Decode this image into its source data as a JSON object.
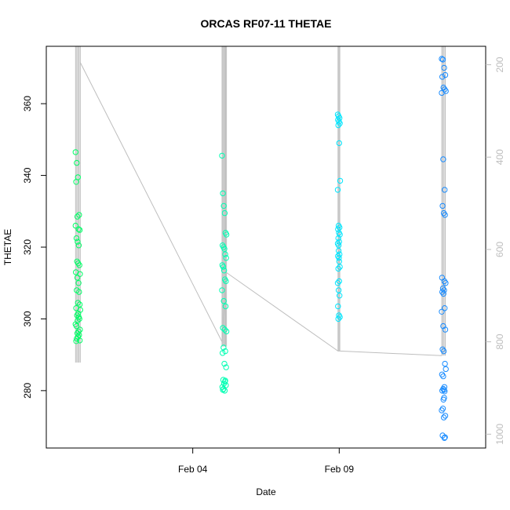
{
  "chart_data": {
    "type": "scatter",
    "title": "ORCAS RF07-11 THETAE",
    "xlabel": "Date",
    "ylabel": "THETAE",
    "x_ticks": [
      "Feb 04",
      "Feb 09"
    ],
    "y_ticks": [
      "280",
      "300",
      "320",
      "340",
      "360"
    ],
    "y2_ticks": [
      "200",
      "400",
      "600",
      "800",
      "1000"
    ],
    "xlim": [
      "2016-01-30",
      "2016-02-14"
    ],
    "ylim": [
      264,
      376
    ],
    "y2lim": [
      1030,
      160
    ],
    "y2_reversed": true,
    "grid": false,
    "colors": {
      "flight1": "#00ff66",
      "flight2": "#00ffb3",
      "flight3": "#00e6ff",
      "flight4": "#1a8cff",
      "altitude_line": "#bebebe"
    },
    "series": [
      {
        "flight": 1,
        "color": "#00ff66",
        "x": [
          "2016-01-31",
          "2016-01-31",
          "2016-01-31",
          "2016-01-31",
          "2016-01-31",
          "2016-01-31",
          "2016-01-31",
          "2016-01-31",
          "2016-01-31",
          "2016-01-31",
          "2016-01-31",
          "2016-01-31",
          "2016-01-31",
          "2016-01-31",
          "2016-01-31",
          "2016-01-31",
          "2016-01-31",
          "2016-01-31",
          "2016-01-31",
          "2016-01-31",
          "2016-01-31",
          "2016-01-31",
          "2016-01-31",
          "2016-01-31",
          "2016-01-31",
          "2016-01-31",
          "2016-01-31",
          "2016-01-31",
          "2016-01-31",
          "2016-01-31",
          "2016-01-31",
          "2016-01-31",
          "2016-01-31",
          "2016-01-31",
          "2016-01-31",
          "2016-01-31",
          "2016-01-31",
          "2016-01-31",
          "2016-01-31",
          "2016-01-31"
        ],
        "x_offset": [
          0.0,
          0.04,
          0.08,
          0.02,
          0.12,
          0.06,
          0.0,
          0.1,
          0.14,
          0.03,
          0.07,
          0.11,
          0.05,
          0.09,
          0.13,
          0.01,
          0.15,
          0.06,
          0.1,
          0.04,
          0.12,
          0.08,
          0.14,
          0.02,
          0.16,
          0.09,
          0.05,
          0.11,
          0.13,
          0.07,
          0.0,
          0.03,
          0.15,
          0.1,
          0.06,
          0.12,
          0.08,
          0.04,
          0.14,
          0.02
        ],
        "y": [
          346.5,
          343.5,
          339.5,
          338.2,
          329,
          328.5,
          326,
          325,
          324.8,
          322.5,
          321.5,
          320.5,
          316,
          315.5,
          315,
          313,
          312.5,
          311.5,
          310,
          308,
          307.5,
          304.5,
          304,
          303,
          302.5,
          301.5,
          301,
          300.5,
          300,
          299.5,
          298.5,
          298,
          297,
          296.5,
          296,
          295.5,
          295,
          294.5,
          294,
          293.8
        ]
      },
      {
        "flight": 2,
        "color": "#00ffb3",
        "x": [
          "2016-02-05",
          "2016-02-05",
          "2016-02-05",
          "2016-02-05",
          "2016-02-05",
          "2016-02-05",
          "2016-02-05",
          "2016-02-05",
          "2016-02-05",
          "2016-02-05",
          "2016-02-05",
          "2016-02-05",
          "2016-02-05",
          "2016-02-05",
          "2016-02-05",
          "2016-02-05",
          "2016-02-05",
          "2016-02-05",
          "2016-02-05",
          "2016-02-05",
          "2016-02-05",
          "2016-02-05",
          "2016-02-05",
          "2016-02-05",
          "2016-02-05",
          "2016-02-05",
          "2016-02-05",
          "2016-02-05",
          "2016-02-05",
          "2016-02-05",
          "2016-02-05",
          "2016-02-05",
          "2016-02-05",
          "2016-02-05",
          "2016-02-05",
          "2016-02-05"
        ],
        "x_offset": [
          0.0,
          0.03,
          0.06,
          0.09,
          0.12,
          0.15,
          0.02,
          0.05,
          0.08,
          0.11,
          0.14,
          0.01,
          0.04,
          0.07,
          0.1,
          0.13,
          0.0,
          0.06,
          0.12,
          0.03,
          0.09,
          0.15,
          0.05,
          0.11,
          0.02,
          0.08,
          0.14,
          0.04,
          0.1,
          0.07,
          0.13,
          0.01,
          0.05,
          0.09,
          0.03,
          0.11
        ],
        "y": [
          345.5,
          335,
          331.5,
          329.5,
          324,
          323.5,
          320.5,
          320,
          319.5,
          318,
          317,
          315,
          314.5,
          313.5,
          311,
          310.5,
          308,
          305,
          303.5,
          297.5,
          297,
          296.5,
          292,
          291,
          290.5,
          287.5,
          286.5,
          283,
          282.5,
          282,
          281.5,
          281,
          280.5,
          280,
          280.2,
          282.8
        ]
      },
      {
        "flight": 3,
        "color": "#00e6ff",
        "x": [
          "2016-02-08",
          "2016-02-08",
          "2016-02-08",
          "2016-02-08",
          "2016-02-08",
          "2016-02-08",
          "2016-02-08",
          "2016-02-08",
          "2016-02-08",
          "2016-02-08",
          "2016-02-08",
          "2016-02-08",
          "2016-02-08",
          "2016-02-08",
          "2016-02-08",
          "2016-02-08",
          "2016-02-08",
          "2016-02-08",
          "2016-02-08",
          "2016-02-08",
          "2016-02-08",
          "2016-02-08",
          "2016-02-08",
          "2016-02-08",
          "2016-02-08",
          "2016-02-08",
          "2016-02-08",
          "2016-02-08",
          "2016-02-08",
          "2016-02-08",
          "2016-02-08",
          "2016-02-08",
          "2016-02-08",
          "2016-02-08"
        ],
        "x_offset": [
          0.95,
          0.98,
          1.01,
          0.96,
          0.99,
          1.02,
          0.97,
          1.0,
          1.03,
          0.95,
          0.98,
          1.01,
          0.96,
          0.99,
          1.02,
          0.97,
          1.0,
          0.95,
          0.98,
          1.01,
          0.96,
          0.99,
          1.02,
          0.97,
          1.0,
          0.95,
          0.98,
          1.01,
          0.96,
          0.99,
          1.02,
          0.97,
          1.0,
          0.98
        ],
        "y": [
          357,
          356.5,
          356,
          355.5,
          355,
          354.5,
          354,
          349,
          338.5,
          336,
          326,
          325.5,
          325,
          324,
          323.5,
          322.5,
          321.5,
          321,
          320.5,
          318,
          317.5,
          317,
          314.5,
          314,
          310.5,
          310,
          308,
          306.5,
          303.5,
          301,
          300.5,
          300,
          316,
          319
        ]
      },
      {
        "flight": 4,
        "color": "#1a8cff",
        "x": [
          "2016-02-12",
          "2016-02-12",
          "2016-02-12",
          "2016-02-12",
          "2016-02-12",
          "2016-02-12",
          "2016-02-12",
          "2016-02-12",
          "2016-02-12",
          "2016-02-12",
          "2016-02-12",
          "2016-02-12",
          "2016-02-12",
          "2016-02-12",
          "2016-02-12",
          "2016-02-12",
          "2016-02-12",
          "2016-02-12",
          "2016-02-12",
          "2016-02-12",
          "2016-02-12",
          "2016-02-12",
          "2016-02-12",
          "2016-02-12",
          "2016-02-12",
          "2016-02-12",
          "2016-02-12",
          "2016-02-12",
          "2016-02-12",
          "2016-02-12",
          "2016-02-12",
          "2016-02-12",
          "2016-02-12",
          "2016-02-12",
          "2016-02-12",
          "2016-02-12",
          "2016-02-12",
          "2016-02-12",
          "2016-02-12",
          "2016-02-12",
          "2016-02-12",
          "2016-02-12",
          "2016-02-12",
          "2016-02-12",
          "2016-02-12"
        ],
        "x_offset": [
          0.5,
          0.54,
          0.58,
          0.62,
          0.52,
          0.56,
          0.6,
          0.64,
          0.5,
          0.55,
          0.6,
          0.53,
          0.57,
          0.61,
          0.51,
          0.59,
          0.63,
          0.54,
          0.58,
          0.52,
          0.56,
          0.6,
          0.5,
          0.55,
          0.62,
          0.53,
          0.57,
          0.61,
          0.64,
          0.51,
          0.59,
          0.55,
          0.58,
          0.52,
          0.6,
          0.56,
          0.54,
          0.5,
          0.62,
          0.57,
          0.53,
          0.61,
          0.59,
          0.55,
          0.58
        ],
        "y": [
          372.5,
          372.3,
          370,
          368,
          367.5,
          364.5,
          364,
          363.5,
          363,
          344.5,
          336,
          331.5,
          329.5,
          329,
          311.5,
          310.5,
          310,
          308.5,
          308,
          307.5,
          307,
          303,
          302,
          298,
          297,
          291.5,
          291,
          287.5,
          286,
          284.5,
          281,
          280.5,
          280.2,
          280,
          279.8,
          277.5,
          275,
          274.5,
          273,
          272.5,
          267.5,
          267,
          266.8,
          284,
          278
        ]
      }
    ]
  }
}
